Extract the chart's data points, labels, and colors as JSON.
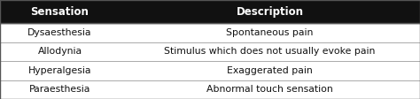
{
  "headers": [
    "Sensation",
    "Description"
  ],
  "rows": [
    [
      "Dysaesthesia",
      "Spontaneous pain"
    ],
    [
      "Allodynia",
      "Stimulus which does not usually evoke pain"
    ],
    [
      "Hyperalgesia",
      "Exaggerated pain"
    ],
    [
      "Paraesthesia",
      "Abnormal touch sensation"
    ]
  ],
  "header_bg": "#111111",
  "header_fg": "#ffffff",
  "row_bg": "#ffffff",
  "body_bg": "#f5f5f5",
  "border_color": "#555555",
  "sep_color": "#aaaaaa",
  "col_split": 0.285,
  "fig_width": 4.74,
  "fig_height": 1.12,
  "header_fontsize": 8.5,
  "row_fontsize": 7.8,
  "dpi": 100
}
